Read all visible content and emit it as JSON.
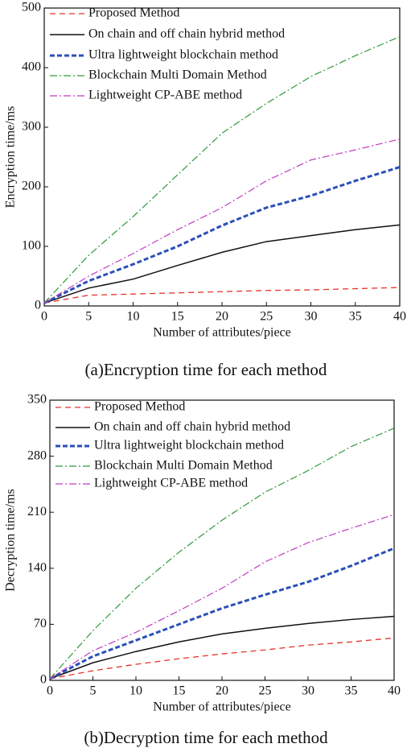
{
  "chart_data": [
    {
      "type": "line",
      "xlabel": "Number of attributes/piece",
      "ylabel": "Encryption time/ms",
      "caption": "(a)Encryption time for each method",
      "x": [
        0,
        5,
        10,
        15,
        20,
        25,
        30,
        35,
        40
      ],
      "xlim": [
        0,
        40
      ],
      "xticks": [
        0,
        5,
        10,
        15,
        20,
        25,
        30,
        35,
        40
      ],
      "ylim": [
        0,
        500
      ],
      "yticks": [
        0,
        100,
        200,
        300,
        400,
        500
      ],
      "legend": "upper left",
      "series": [
        {
          "name": "Proposed Method",
          "color": "#e8322a",
          "linestyle": "--",
          "values": [
            5,
            18,
            20,
            22,
            24,
            26,
            27,
            29,
            31
          ]
        },
        {
          "name": "On chain and off chain hybrid method",
          "color": "#111111",
          "linestyle": "-",
          "values": [
            5,
            30,
            45,
            68,
            90,
            108,
            118,
            128,
            136
          ]
        },
        {
          "name": "Ultra lightweight blockchain method",
          "color": "#2b4fb8",
          "linestyle": "bold-dashed",
          "values": [
            5,
            42,
            70,
            100,
            135,
            165,
            185,
            210,
            233
          ]
        },
        {
          "name": "Blockchain Multi Domain Method",
          "color": "#2e9a3a",
          "linestyle": "-.",
          "values": [
            5,
            85,
            150,
            220,
            290,
            340,
            385,
            420,
            452
          ]
        },
        {
          "name": "Lightweight CP-ABE method",
          "color": "#c03cc0",
          "linestyle": "-.",
          "values": [
            5,
            50,
            88,
            128,
            165,
            210,
            245,
            262,
            280
          ]
        }
      ]
    },
    {
      "type": "line",
      "xlabel": "Number of attributes/piece",
      "ylabel": "Decryption time/ms",
      "caption": "(b)Decryption time for each method",
      "x": [
        0,
        5,
        10,
        15,
        20,
        25,
        30,
        35,
        40
      ],
      "xlim": [
        0,
        40
      ],
      "xticks": [
        0,
        5,
        10,
        15,
        20,
        25,
        30,
        35,
        40
      ],
      "ylim": [
        0,
        350
      ],
      "yticks": [
        0,
        70,
        140,
        210,
        280,
        350
      ],
      "legend": "upper left",
      "series": [
        {
          "name": "Proposed Method",
          "color": "#e8322a",
          "linestyle": "--",
          "values": [
            2,
            12,
            20,
            27,
            33,
            38,
            44,
            48,
            53
          ]
        },
        {
          "name": "On chain and off chain hybrid method",
          "color": "#111111",
          "linestyle": "-",
          "values": [
            2,
            22,
            36,
            48,
            58,
            65,
            71,
            76,
            80
          ]
        },
        {
          "name": "Ultra lightweight blockchain method",
          "color": "#2b4fb8",
          "linestyle": "bold-dashed",
          "values": [
            2,
            30,
            50,
            70,
            90,
            107,
            123,
            143,
            165
          ]
        },
        {
          "name": "Blockchain Multi Domain Method",
          "color": "#2e9a3a",
          "linestyle": "-.",
          "values": [
            2,
            62,
            115,
            160,
            200,
            235,
            262,
            292,
            315
          ]
        },
        {
          "name": "Lightweight CP-ABE method",
          "color": "#c03cc0",
          "linestyle": "-.",
          "values": [
            2,
            37,
            60,
            87,
            115,
            148,
            172,
            190,
            207
          ]
        }
      ]
    }
  ]
}
